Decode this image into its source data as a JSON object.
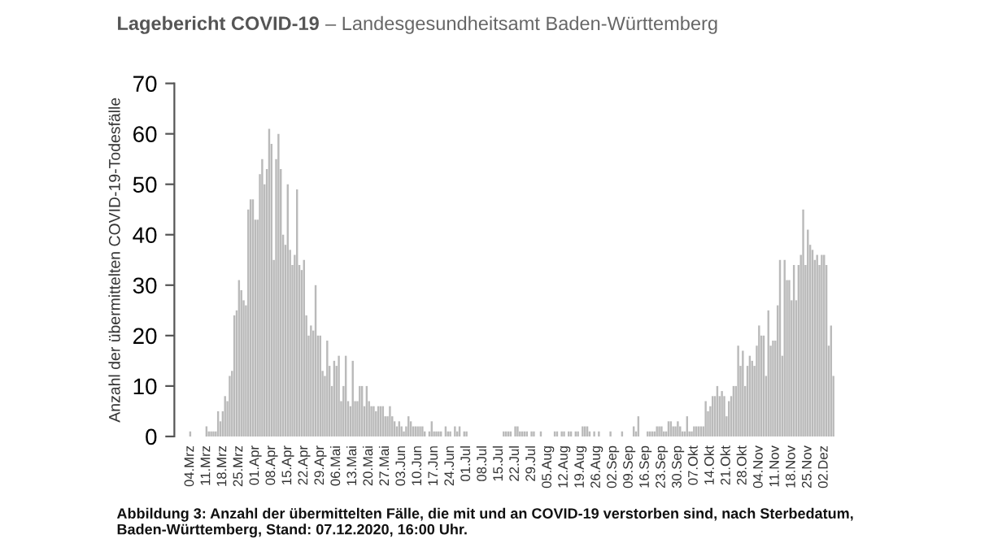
{
  "chart_data": {
    "type": "bar",
    "title": "Lagebericht COVID-19",
    "subtitle": "– Landesgesundheitsamt Baden-Württemberg",
    "ylabel": "Anzahl der übermittelten COVID-19-Todesfälle",
    "annotations": [
      "Abbildung 3: Anzahl der übermittelten Fälle, die mit und an COVID-19 verstorben sind, nach Sterbedatum, Baden-Württemberg, Stand: 07.12.2020, 16:00 Uhr."
    ],
    "categories": [
      "04.Mrz",
      null,
      null,
      null,
      null,
      null,
      null,
      "11.Mrz",
      null,
      null,
      null,
      null,
      null,
      null,
      "18.Mrz",
      null,
      null,
      null,
      null,
      null,
      null,
      "25.Mrz",
      null,
      null,
      null,
      null,
      null,
      null,
      "01.Apr",
      null,
      null,
      null,
      null,
      null,
      null,
      "08.Apr",
      null,
      null,
      null,
      null,
      null,
      null,
      "15.Apr",
      null,
      null,
      null,
      null,
      null,
      null,
      "22.Apr",
      null,
      null,
      null,
      null,
      null,
      null,
      "29.Apr",
      null,
      null,
      null,
      null,
      null,
      null,
      "06.Mai",
      null,
      null,
      null,
      null,
      null,
      null,
      "13.Mai",
      null,
      null,
      null,
      null,
      null,
      null,
      "20.Mai",
      null,
      null,
      null,
      null,
      null,
      null,
      "27.Mai",
      null,
      null,
      null,
      null,
      null,
      null,
      "03.Jun",
      null,
      null,
      null,
      null,
      null,
      null,
      "10.Jun",
      null,
      null,
      null,
      null,
      null,
      null,
      "17.Jun",
      null,
      null,
      null,
      null,
      null,
      null,
      "24.Jun",
      null,
      null,
      null,
      null,
      null,
      null,
      "01.Jul",
      null,
      null,
      null,
      null,
      null,
      null,
      "08.Jul",
      null,
      null,
      null,
      null,
      null,
      null,
      "15.Jul",
      null,
      null,
      null,
      null,
      null,
      null,
      "22.Jul",
      null,
      null,
      null,
      null,
      null,
      null,
      "29.Jul",
      null,
      null,
      null,
      null,
      null,
      null,
      "05.Aug",
      null,
      null,
      null,
      null,
      null,
      null,
      "12.Aug",
      null,
      null,
      null,
      null,
      null,
      null,
      "19.Aug",
      null,
      null,
      null,
      null,
      null,
      null,
      "26.Aug",
      null,
      null,
      null,
      null,
      null,
      null,
      "02.Sep",
      null,
      null,
      null,
      null,
      null,
      null,
      "09.Sep",
      null,
      null,
      null,
      null,
      null,
      null,
      "16.Sep",
      null,
      null,
      null,
      null,
      null,
      null,
      "23.Sep",
      null,
      null,
      null,
      null,
      null,
      null,
      "30.Sep",
      null,
      null,
      null,
      null,
      null,
      null,
      "07.Okt",
      null,
      null,
      null,
      null,
      null,
      null,
      "14.Okt",
      null,
      null,
      null,
      null,
      null,
      null,
      "21.Okt",
      null,
      null,
      null,
      null,
      null,
      null,
      "28.Okt",
      null,
      null,
      null,
      null,
      null,
      null,
      "04.Nov",
      null,
      null,
      null,
      null,
      null,
      null,
      "11.Nov",
      null,
      null,
      null,
      null,
      null,
      null,
      "18.Nov",
      null,
      null,
      null,
      null,
      null,
      null,
      "25.Nov",
      null,
      null,
      null,
      null,
      null,
      null,
      "02.Dez",
      null,
      null,
      null,
      null
    ],
    "color": "#bababa",
    "values": [
      1,
      0,
      0,
      0,
      0,
      0,
      0,
      2,
      1,
      1,
      1,
      1,
      5,
      3,
      5,
      8,
      7,
      12,
      13,
      24,
      25,
      31,
      29,
      27,
      26,
      45,
      47,
      47,
      43,
      43,
      52,
      55,
      50,
      53,
      61,
      58,
      35,
      55,
      60,
      53,
      40,
      38,
      50,
      37,
      34,
      36,
      49,
      34,
      33,
      35,
      24,
      20,
      22,
      21,
      30,
      20,
      20,
      13,
      12,
      19,
      14,
      10,
      15,
      14,
      16,
      7,
      10,
      16,
      7,
      6,
      15,
      7,
      7,
      10,
      10,
      6,
      10,
      7,
      6,
      6,
      5,
      6,
      6,
      6,
      4,
      4,
      6,
      4,
      3,
      2,
      3,
      2,
      1,
      2,
      4,
      3,
      2,
      2,
      2,
      2,
      2,
      1,
      0,
      1,
      3,
      1,
      1,
      1,
      1,
      0,
      2,
      1,
      1,
      0,
      2,
      1,
      2,
      0,
      1,
      1,
      0,
      0,
      0,
      0,
      0,
      0,
      0,
      0,
      0,
      0,
      0,
      0,
      0,
      0,
      0,
      1,
      1,
      1,
      1,
      0,
      2,
      2,
      1,
      1,
      1,
      1,
      0,
      1,
      1,
      0,
      0,
      1,
      0,
      0,
      0,
      0,
      0,
      1,
      1,
      0,
      1,
      1,
      0,
      1,
      1,
      0,
      1,
      1,
      0,
      2,
      2,
      2,
      1,
      0,
      1,
      0,
      1,
      0,
      0,
      0,
      0,
      1,
      0,
      0,
      0,
      0,
      1,
      0,
      0,
      0,
      0,
      2,
      1,
      4,
      0,
      0,
      0,
      1,
      1,
      1,
      1,
      2,
      2,
      2,
      1,
      1,
      3,
      3,
      2,
      2,
      3,
      2,
      1,
      1,
      4,
      1,
      1,
      2,
      2,
      2,
      2,
      2,
      7,
      5,
      6,
      8,
      8,
      10,
      8,
      9,
      8,
      4,
      7,
      8,
      10,
      10,
      18,
      14,
      17,
      10,
      14,
      16,
      15,
      14,
      18,
      22,
      20,
      20,
      12,
      25,
      18,
      19,
      19,
      26,
      35,
      16,
      35,
      31,
      31,
      27,
      34,
      27,
      34,
      36,
      45,
      34,
      41,
      38,
      37,
      35,
      36,
      34,
      36,
      36,
      34,
      18,
      22,
      12
    ],
    "ylim": [
      0,
      70
    ],
    "yticks": [
      0,
      10,
      20,
      30,
      40,
      50,
      60,
      70
    ],
    "grid": false,
    "legend": false
  }
}
